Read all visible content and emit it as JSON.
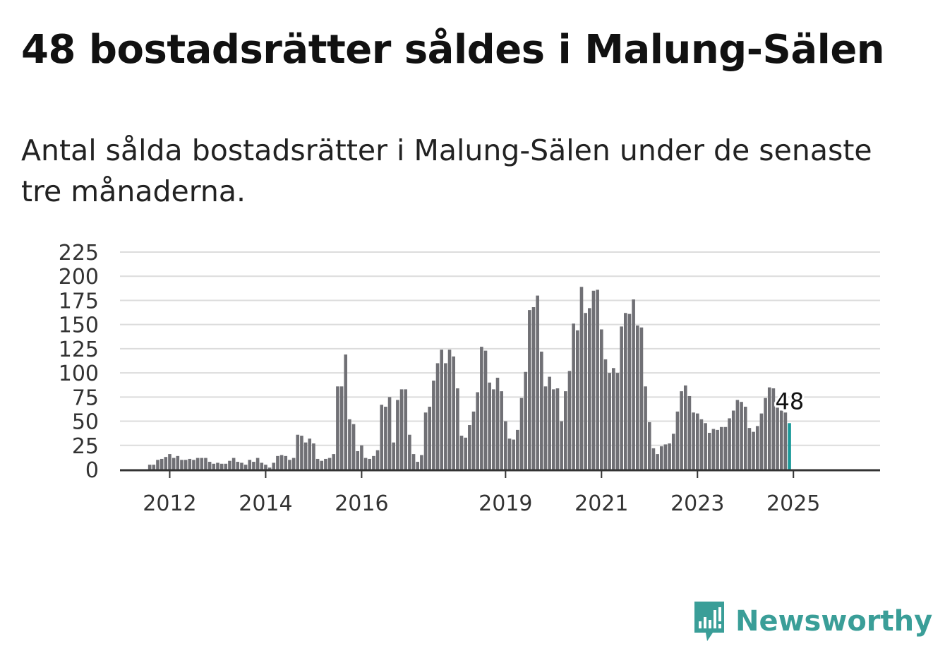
{
  "title": "48 bostadsrätter såldes i Malung-Sälen",
  "subtitle": "Antal sålda bostadsrätter i Malung-Sälen under de senaste tre månaderna.",
  "brand": {
    "name": "Newsworthy",
    "color": "#3a9e98",
    "icon": "bar-chart-icon"
  },
  "chart_data": {
    "type": "bar",
    "title": "",
    "xlabel": "",
    "ylabel": "",
    "ylim": [
      0,
      225
    ],
    "y_ticks": [
      0,
      25,
      50,
      75,
      100,
      125,
      150,
      175,
      200,
      225
    ],
    "x_tick_labels": [
      "2012",
      "2014",
      "2016",
      "2019",
      "2021",
      "2023",
      "2025"
    ],
    "grid": true,
    "bar_color": "#707075",
    "highlight_color": "#1a9a9a",
    "highlight_last": true,
    "start": "2011-01",
    "last_value_label": "48",
    "values": [
      0,
      0,
      0,
      0,
      0,
      0,
      0,
      5,
      5,
      10,
      11,
      13,
      16,
      12,
      14,
      10,
      10,
      11,
      10,
      12,
      12,
      12,
      8,
      6,
      7,
      6,
      6,
      9,
      12,
      8,
      7,
      5,
      10,
      8,
      12,
      7,
      5,
      2,
      7,
      14,
      15,
      14,
      10,
      12,
      36,
      35,
      28,
      32,
      27,
      11,
      9,
      11,
      12,
      16,
      86,
      86,
      119,
      52,
      47,
      19,
      25,
      12,
      11,
      14,
      20,
      67,
      65,
      75,
      28,
      72,
      83,
      83,
      36,
      16,
      8,
      15,
      59,
      65,
      92,
      110,
      124,
      110,
      124,
      117,
      84,
      35,
      33,
      46,
      60,
      80,
      127,
      123,
      90,
      83,
      95,
      81,
      50,
      32,
      31,
      41,
      74,
      101,
      165,
      168,
      180,
      122,
      86,
      96,
      83,
      84,
      50,
      81,
      102,
      151,
      144,
      189,
      162,
      167,
      185,
      186,
      145,
      114,
      100,
      105,
      100,
      148,
      162,
      161,
      176,
      149,
      147,
      86,
      49,
      22,
      16,
      24,
      26,
      27,
      37,
      60,
      81,
      87,
      76,
      59,
      58,
      52,
      48,
      38,
      42,
      41,
      44,
      44,
      53,
      61,
      72,
      70,
      65,
      43,
      39,
      45,
      58,
      74,
      85,
      84,
      64,
      61,
      59,
      48
    ],
    "series": [
      {
        "name": "",
        "values": "see values"
      }
    ]
  }
}
